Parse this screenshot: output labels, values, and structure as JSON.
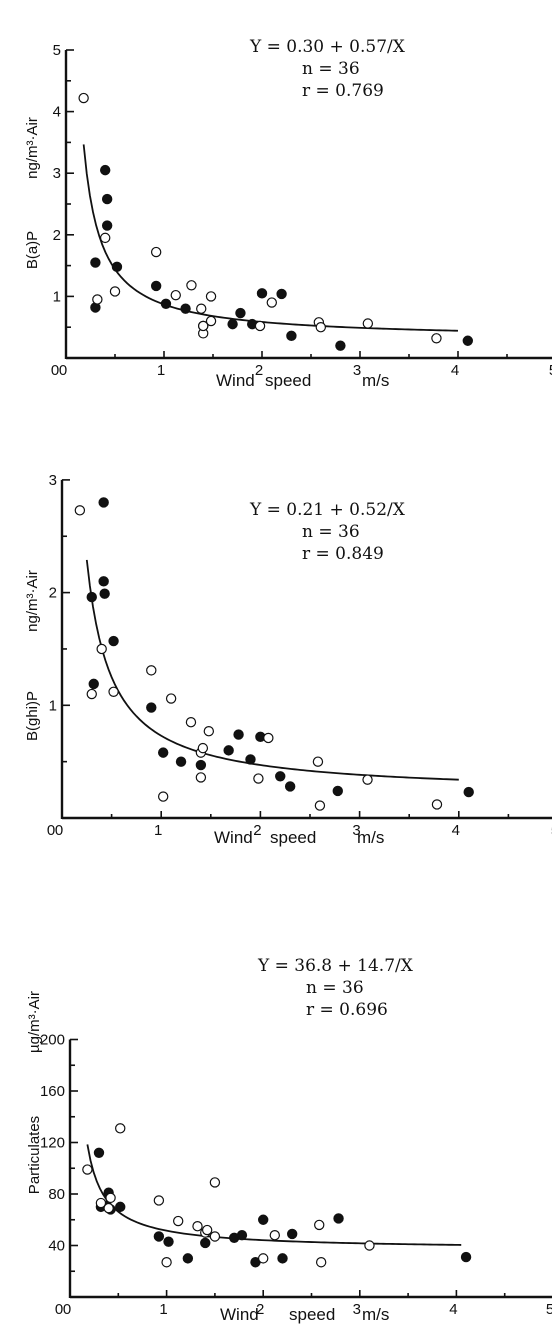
{
  "chart_data": [
    {
      "type": "scatter",
      "xlabel_parts": [
        "Wind",
        "speed",
        "m/s"
      ],
      "ylabel_compound": "B(a)P",
      "ylabel_unit": "ng/m³·Air",
      "xlim": [
        0,
        5
      ],
      "ylim": [
        0,
        5
      ],
      "x_ticks": [
        "0",
        "1",
        "2",
        "3",
        "4",
        "5"
      ],
      "y_ticks": [
        "1",
        "2",
        "3",
        "4",
        "5"
      ],
      "equation": "Y = 0.30 + 0.57/X",
      "n_text": "n = 36",
      "r_text": "r = 0.769",
      "fit": {
        "a": 0.3,
        "b": 0.57,
        "x_start": 0.18,
        "x_end": 4.0
      },
      "series": [
        {
          "marker": "filled",
          "points": [
            [
              0.3,
              1.55
            ],
            [
              0.3,
              0.82
            ],
            [
              0.4,
              3.05
            ],
            [
              0.42,
              2.58
            ],
            [
              0.42,
              2.15
            ],
            [
              0.52,
              1.48
            ],
            [
              0.92,
              1.17
            ],
            [
              1.02,
              0.88
            ],
            [
              1.22,
              0.8
            ],
            [
              1.4,
              0.52
            ],
            [
              1.7,
              0.55
            ],
            [
              1.78,
              0.73
            ],
            [
              1.9,
              0.55
            ],
            [
              2.0,
              1.05
            ],
            [
              2.2,
              1.04
            ],
            [
              2.3,
              0.36
            ],
            [
              2.8,
              0.2
            ],
            [
              4.1,
              0.28
            ]
          ]
        },
        {
          "marker": "open",
          "points": [
            [
              0.18,
              4.22
            ],
            [
              0.32,
              0.95
            ],
            [
              0.4,
              1.95
            ],
            [
              0.5,
              1.08
            ],
            [
              0.92,
              1.72
            ],
            [
              1.12,
              1.02
            ],
            [
              1.28,
              1.18
            ],
            [
              1.38,
              0.8
            ],
            [
              1.4,
              0.4
            ],
            [
              1.48,
              0.6
            ],
            [
              1.48,
              1.0
            ],
            [
              1.98,
              0.52
            ],
            [
              2.1,
              0.9
            ],
            [
              2.58,
              0.58
            ],
            [
              2.6,
              0.5
            ],
            [
              3.08,
              0.56
            ],
            [
              3.78,
              0.32
            ],
            [
              1.4,
              0.52
            ]
          ]
        }
      ]
    },
    {
      "type": "scatter",
      "xlabel_parts": [
        "Wind",
        "speed",
        "m/s"
      ],
      "ylabel_compound": "B(ghi)P",
      "ylabel_unit": "ng/m³·Air",
      "xlim": [
        0,
        5
      ],
      "ylim": [
        0,
        3
      ],
      "x_ticks": [
        "0",
        "1",
        "2",
        "3",
        "4",
        "5"
      ],
      "y_ticks": [
        "1",
        "2",
        "3"
      ],
      "equation": "Y = 0.21 + 0.52/X",
      "n_text": "n = 36",
      "r_text": "r = 0.849",
      "fit": {
        "a": 0.21,
        "b": 0.52,
        "x_start": 0.25,
        "x_end": 4.0
      },
      "series": [
        {
          "marker": "filled",
          "points": [
            [
              0.3,
              1.96
            ],
            [
              0.32,
              1.19
            ],
            [
              0.42,
              2.8
            ],
            [
              0.42,
              2.1
            ],
            [
              0.43,
              1.99
            ],
            [
              0.52,
              1.57
            ],
            [
              0.9,
              0.98
            ],
            [
              1.02,
              0.58
            ],
            [
              1.2,
              0.5
            ],
            [
              1.4,
              0.47
            ],
            [
              1.68,
              0.6
            ],
            [
              1.78,
              0.74
            ],
            [
              1.9,
              0.52
            ],
            [
              2.0,
              0.72
            ],
            [
              2.2,
              0.37
            ],
            [
              2.3,
              0.28
            ],
            [
              2.78,
              0.24
            ],
            [
              4.1,
              0.23
            ]
          ]
        },
        {
          "marker": "open",
          "points": [
            [
              0.18,
              2.73
            ],
            [
              0.3,
              1.1
            ],
            [
              0.4,
              1.5
            ],
            [
              0.52,
              1.12
            ],
            [
              0.9,
              1.31
            ],
            [
              1.02,
              0.19
            ],
            [
              1.1,
              1.06
            ],
            [
              1.3,
              0.85
            ],
            [
              1.4,
              0.58
            ],
            [
              1.4,
              0.36
            ],
            [
              1.48,
              0.77
            ],
            [
              1.98,
              0.35
            ],
            [
              2.08,
              0.71
            ],
            [
              2.58,
              0.5
            ],
            [
              2.6,
              0.11
            ],
            [
              3.08,
              0.34
            ],
            [
              3.78,
              0.12
            ],
            [
              1.42,
              0.62
            ]
          ]
        }
      ]
    },
    {
      "type": "scatter",
      "xlabel_parts": [
        "Wind",
        "speed",
        "m/s"
      ],
      "ylabel_compound": "Particulates",
      "ylabel_unit": "µg/m³·Air",
      "xlim": [
        0,
        5
      ],
      "ylim": [
        0,
        200
      ],
      "x_ticks": [
        "0",
        "1",
        "2",
        "3",
        "4",
        "5"
      ],
      "y_ticks": [
        "40",
        "80",
        "120",
        "160",
        "200"
      ],
      "equation": "Y = 36.8 + 14.7/X",
      "n_text": "n = 36",
      "r_text": "r = 0.696",
      "fit": {
        "a": 36.8,
        "b": 14.7,
        "x_start": 0.18,
        "x_end": 4.05
      },
      "series": [
        {
          "marker": "filled",
          "points": [
            [
              0.3,
              112
            ],
            [
              0.32,
              70
            ],
            [
              0.4,
              81
            ],
            [
              0.42,
              68
            ],
            [
              0.52,
              70
            ],
            [
              0.92,
              47
            ],
            [
              1.02,
              43
            ],
            [
              1.22,
              30
            ],
            [
              1.4,
              42
            ],
            [
              1.7,
              46
            ],
            [
              1.78,
              48
            ],
            [
              1.92,
              27
            ],
            [
              2.0,
              60
            ],
            [
              2.2,
              30
            ],
            [
              2.3,
              49
            ],
            [
              2.78,
              61
            ],
            [
              4.1,
              31
            ],
            [
              0.38,
              71
            ]
          ]
        },
        {
          "marker": "open",
          "points": [
            [
              0.18,
              99
            ],
            [
              0.32,
              73
            ],
            [
              0.4,
              69
            ],
            [
              0.42,
              77
            ],
            [
              0.52,
              131
            ],
            [
              0.92,
              75
            ],
            [
              1.0,
              27
            ],
            [
              1.12,
              59
            ],
            [
              1.32,
              55
            ],
            [
              1.4,
              50
            ],
            [
              1.42,
              52
            ],
            [
              1.5,
              89
            ],
            [
              1.5,
              47
            ],
            [
              2.0,
              30
            ],
            [
              2.12,
              48
            ],
            [
              2.58,
              56
            ],
            [
              2.6,
              27
            ],
            [
              3.1,
              40
            ]
          ]
        }
      ]
    }
  ]
}
